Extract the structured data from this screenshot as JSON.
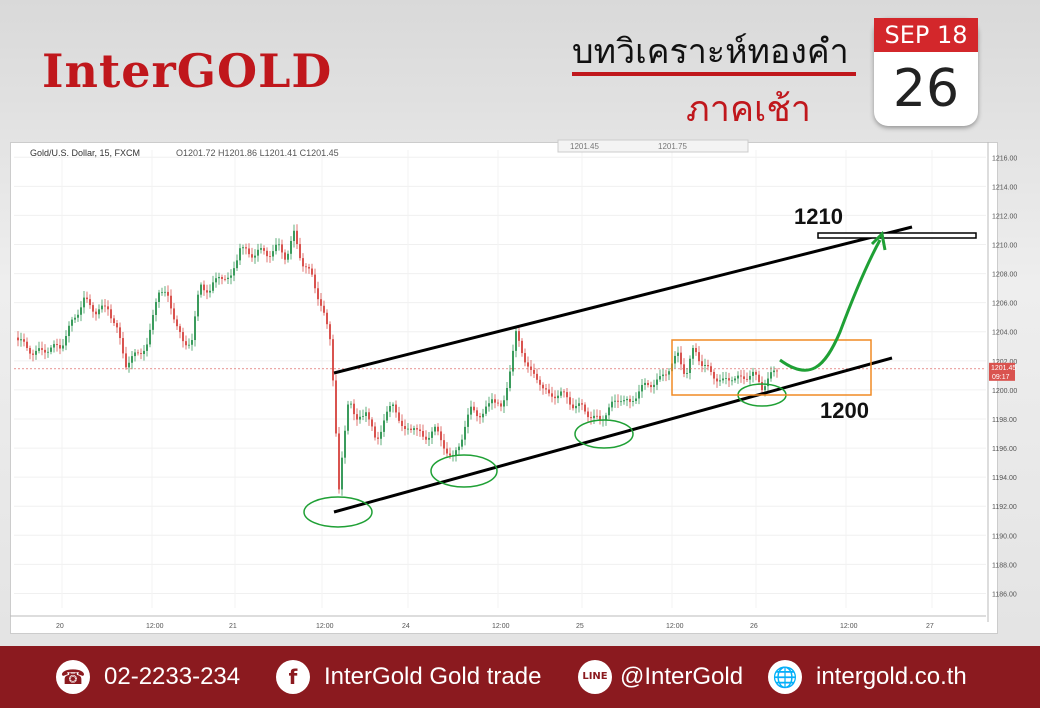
{
  "header": {
    "logo": "InterGOLD",
    "title_line1": "บทวิเคราะห์ทองคำ",
    "title_line2": "ภาคเช้า",
    "calendar_month": "SEP 18",
    "calendar_day": "26"
  },
  "chart_data": {
    "type": "candlestick",
    "instrument_header": "Gold/U.S. Dollar, 15, FXCM",
    "ohlc_label": "O1201.72 H1201.86 L1201.41 C1201.45",
    "toolbar_values": [
      "1201.45",
      "1201.75"
    ],
    "y_ticks": [
      "1216.00",
      "1214.00",
      "1212.00",
      "1210.00",
      "1208.00",
      "1206.00",
      "1204.00",
      "1202.00",
      "1200.00",
      "1198.00",
      "1196.00",
      "1194.00",
      "1192.00",
      "1190.00",
      "1188.00",
      "1186.00"
    ],
    "x_ticks": [
      "20",
      "12:00",
      "21",
      "12:00",
      "24",
      "12:00",
      "25",
      "12:00",
      "26",
      "12:00",
      "27"
    ],
    "ylim": [
      1185,
      1216.5
    ],
    "last_price": "1201.45",
    "countdown": "09:17",
    "path": [
      [
        0,
        1203.6
      ],
      [
        8,
        1203.1
      ],
      [
        18,
        1202.5
      ],
      [
        30,
        1202.8
      ],
      [
        45,
        1203.0
      ],
      [
        55,
        1204.5
      ],
      [
        68,
        1206.2
      ],
      [
        80,
        1205.4
      ],
      [
        92,
        1205.7
      ],
      [
        102,
        1203.9
      ],
      [
        110,
        1201.8
      ],
      [
        120,
        1202.4
      ],
      [
        132,
        1203.1
      ],
      [
        142,
        1207.0
      ],
      [
        152,
        1206.3
      ],
      [
        160,
        1204.7
      ],
      [
        168,
        1202.9
      ],
      [
        176,
        1203.6
      ],
      [
        184,
        1207.2
      ],
      [
        194,
        1206.8
      ],
      [
        204,
        1208.0
      ],
      [
        214,
        1207.4
      ],
      [
        224,
        1209.9
      ],
      [
        234,
        1209.2
      ],
      [
        242,
        1209.6
      ],
      [
        252,
        1209.3
      ],
      [
        262,
        1209.9
      ],
      [
        270,
        1209.1
      ],
      [
        278,
        1210.7
      ],
      [
        286,
        1208.8
      ],
      [
        296,
        1207.8
      ],
      [
        306,
        1205.6
      ],
      [
        315,
        1203.3
      ],
      [
        319,
        1198.5
      ],
      [
        323,
        1193.0
      ],
      [
        327,
        1195.8
      ],
      [
        333,
        1199.9
      ],
      [
        340,
        1197.6
      ],
      [
        350,
        1198.7
      ],
      [
        360,
        1196.3
      ],
      [
        368,
        1198.0
      ],
      [
        378,
        1199.1
      ],
      [
        388,
        1197.0
      ],
      [
        398,
        1197.6
      ],
      [
        408,
        1196.5
      ],
      [
        418,
        1197.4
      ],
      [
        428,
        1196.2
      ],
      [
        436,
        1195.1
      ],
      [
        446,
        1196.8
      ],
      [
        456,
        1198.9
      ],
      [
        466,
        1198.0
      ],
      [
        476,
        1199.6
      ],
      [
        486,
        1198.5
      ],
      [
        492,
        1200.7
      ],
      [
        500,
        1203.8
      ],
      [
        508,
        1202.3
      ],
      [
        516,
        1201.0
      ],
      [
        524,
        1200.6
      ],
      [
        534,
        1199.4
      ],
      [
        544,
        1199.9
      ],
      [
        556,
        1199.0
      ],
      [
        566,
        1198.8
      ],
      [
        576,
        1198.1
      ],
      [
        584,
        1197.9
      ],
      [
        594,
        1198.8
      ],
      [
        604,
        1199.5
      ],
      [
        614,
        1199.0
      ],
      [
        624,
        1200.1
      ],
      [
        634,
        1200.4
      ],
      [
        644,
        1200.7
      ],
      [
        654,
        1201.6
      ],
      [
        662,
        1202.4
      ],
      [
        670,
        1201.0
      ],
      [
        678,
        1202.9
      ],
      [
        686,
        1201.8
      ],
      [
        696,
        1201.1
      ],
      [
        706,
        1200.5
      ],
      [
        716,
        1200.9
      ],
      [
        726,
        1200.7
      ],
      [
        736,
        1201.2
      ],
      [
        746,
        1200.2
      ],
      [
        754,
        1200.9
      ],
      [
        762,
        1201.5
      ]
    ],
    "annotations": {
      "upper_label": "1210",
      "lower_label": "1200"
    }
  },
  "footer": {
    "phone": "02-2233-234",
    "facebook": "InterGold Gold trade",
    "line": "@InterGold",
    "website": "intergold.co.th",
    "line_icon_text": "LINE"
  },
  "colors": {
    "brand_red": "#c0171c",
    "candle_up": "#3a9b5c",
    "candle_down": "#d9534f",
    "channel": "#000000",
    "circles": "#1fa035",
    "box": "#f08a24",
    "arrow": "#1fa035"
  }
}
